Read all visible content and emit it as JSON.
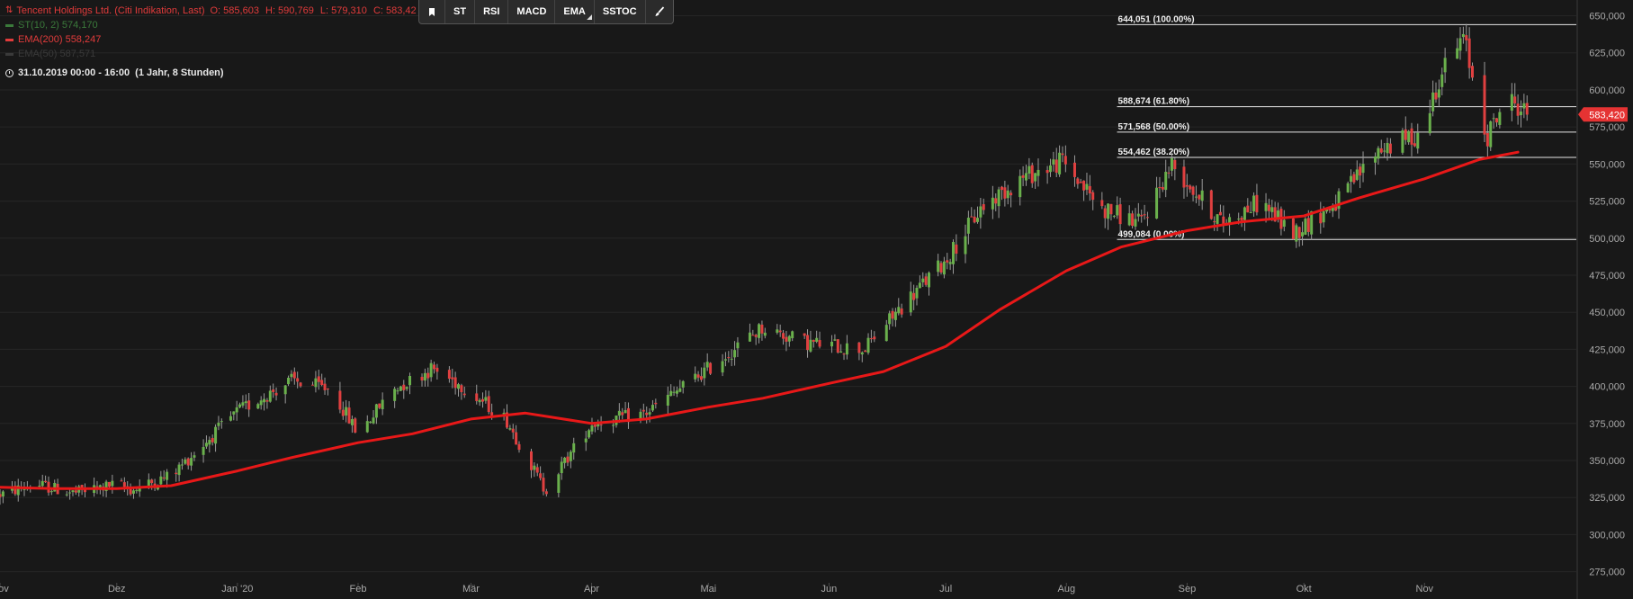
{
  "header": {
    "title": "Tencent Holdings Ltd. (Citi Indikation, Last)",
    "ohlc": {
      "open": "O: 585,603",
      "high": "H: 590,769",
      "low": "L: 579,310",
      "close": "C: 583,42"
    },
    "st_label": "ST(10, 2)  574,170",
    "ema200_label": "EMA(200)  558,247",
    "ema50_label": "EMA(50)  587,571",
    "date_range": "31.10.2019 00:00 - 16:00",
    "date_span": "(1 Jahr, 8 Stunden)"
  },
  "toolbar": {
    "items": [
      {
        "label": "",
        "icon": "bookmark-icon"
      },
      {
        "label": "ST"
      },
      {
        "label": "RSI"
      },
      {
        "label": "MACD"
      },
      {
        "label": "EMA"
      },
      {
        "label": "SSTOC"
      },
      {
        "label": "",
        "icon": "brush-icon"
      }
    ]
  },
  "colors": {
    "background": "#181818",
    "up": "#6ab04c",
    "down": "#e04040",
    "ema": "#e81818",
    "fib": "#e6e6e6",
    "axis_text": "#a9a9a9",
    "price_tag": "#e53333"
  },
  "chart_data": {
    "type": "candlestick",
    "x_axis": {
      "ticks": [
        {
          "label": "Nov",
          "date": "2019-11-01"
        },
        {
          "label": "Dez",
          "date": "2019-12-01"
        },
        {
          "label": "Jan '20",
          "date": "2020-01-01"
        },
        {
          "label": "Feb",
          "date": "2020-02-01"
        },
        {
          "label": "Mär",
          "date": "2020-03-01"
        },
        {
          "label": "Apr",
          "date": "2020-04-01"
        },
        {
          "label": "Mai",
          "date": "2020-05-01"
        },
        {
          "label": "Jun",
          "date": "2020-06-01"
        },
        {
          "label": "Jul",
          "date": "2020-07-01"
        },
        {
          "label": "Aug",
          "date": "2020-08-01"
        },
        {
          "label": "Sep",
          "date": "2020-09-01"
        },
        {
          "label": "Okt",
          "date": "2020-10-01"
        },
        {
          "label": "Nov",
          "date": "2020-11-01"
        }
      ],
      "range": [
        "2019-11-01",
        "2020-12-10"
      ]
    },
    "y_axis": {
      "range": [
        267500,
        657000
      ],
      "ticks": [
        "275,000",
        "300,000",
        "325,000",
        "350,000",
        "375,000",
        "400,000",
        "425,000",
        "450,000",
        "475,000",
        "500,000",
        "525,000",
        "550,000",
        "575,000",
        "600,000",
        "625,000",
        "650,000"
      ]
    },
    "last_price": {
      "value": 583420,
      "label": "583,420"
    },
    "fibonacci": {
      "start_date": "2020-08-14",
      "levels": [
        {
          "value": 644051,
          "label": "644,051 (100.00%)"
        },
        {
          "value": 588674,
          "label": "588,674 (61.80%)"
        },
        {
          "value": 571568,
          "label": "571,568 (50.00%)"
        },
        {
          "value": 554462,
          "label": "554,462 (38.20%)"
        },
        {
          "value": 499084,
          "label": "499,084 (0.00%)"
        }
      ]
    },
    "ema_200": [
      [
        "2019-11-01",
        332000
      ],
      [
        "2019-11-15",
        331000
      ],
      [
        "2019-12-01",
        331000
      ],
      [
        "2019-12-15",
        333000
      ],
      [
        "2020-01-01",
        343000
      ],
      [
        "2020-01-15",
        352000
      ],
      [
        "2020-02-01",
        362000
      ],
      [
        "2020-02-15",
        368000
      ],
      [
        "2020-03-01",
        378000
      ],
      [
        "2020-03-15",
        382000
      ],
      [
        "2020-04-01",
        375000
      ],
      [
        "2020-04-15",
        378000
      ],
      [
        "2020-05-01",
        386000
      ],
      [
        "2020-05-15",
        392000
      ],
      [
        "2020-06-01",
        402000
      ],
      [
        "2020-06-15",
        410000
      ],
      [
        "2020-07-01",
        427000
      ],
      [
        "2020-07-15",
        452000
      ],
      [
        "2020-08-01",
        478000
      ],
      [
        "2020-08-15",
        494000
      ],
      [
        "2020-09-01",
        505000
      ],
      [
        "2020-09-15",
        511000
      ],
      [
        "2020-10-01",
        515000
      ],
      [
        "2020-10-15",
        527000
      ],
      [
        "2020-11-01",
        540000
      ],
      [
        "2020-11-15",
        553000
      ],
      [
        "2020-11-25",
        558000
      ]
    ],
    "price_path": [
      [
        "2019-11-01",
        327000
      ],
      [
        "2019-11-10",
        334000
      ],
      [
        "2019-11-20",
        328000
      ],
      [
        "2019-12-01",
        334000
      ],
      [
        "2019-12-05",
        330000
      ],
      [
        "2019-12-15",
        340000
      ],
      [
        "2020-01-01",
        383000
      ],
      [
        "2020-01-15",
        404000
      ],
      [
        "2020-01-25",
        398000
      ],
      [
        "2020-02-01",
        368000
      ],
      [
        "2020-02-10",
        398000
      ],
      [
        "2020-02-20",
        412000
      ],
      [
        "2020-02-28",
        400000
      ],
      [
        "2020-03-10",
        378000
      ],
      [
        "2020-03-20",
        330000
      ],
      [
        "2020-04-01",
        375000
      ],
      [
        "2020-04-15",
        382000
      ],
      [
        "2020-05-01",
        412000
      ],
      [
        "2020-05-15",
        440000
      ],
      [
        "2020-05-25",
        430000
      ],
      [
        "2020-06-10",
        425000
      ],
      [
        "2020-06-20",
        455000
      ],
      [
        "2020-07-01",
        485000
      ],
      [
        "2020-07-10",
        520000
      ],
      [
        "2020-07-20",
        540000
      ],
      [
        "2020-07-31",
        552000
      ],
      [
        "2020-08-10",
        520000
      ],
      [
        "2020-08-20",
        510000
      ],
      [
        "2020-08-28",
        550000
      ],
      [
        "2020-09-10",
        510000
      ],
      [
        "2020-09-20",
        525000
      ],
      [
        "2020-09-28",
        503000
      ],
      [
        "2020-10-10",
        525000
      ],
      [
        "2020-10-20",
        560000
      ],
      [
        "2020-10-31",
        570000
      ],
      [
        "2020-11-05",
        610000
      ],
      [
        "2020-11-11",
        635000
      ],
      [
        "2020-11-17",
        568000
      ],
      [
        "2020-11-22",
        595000
      ],
      [
        "2020-11-28",
        583420
      ]
    ],
    "grid": true
  }
}
